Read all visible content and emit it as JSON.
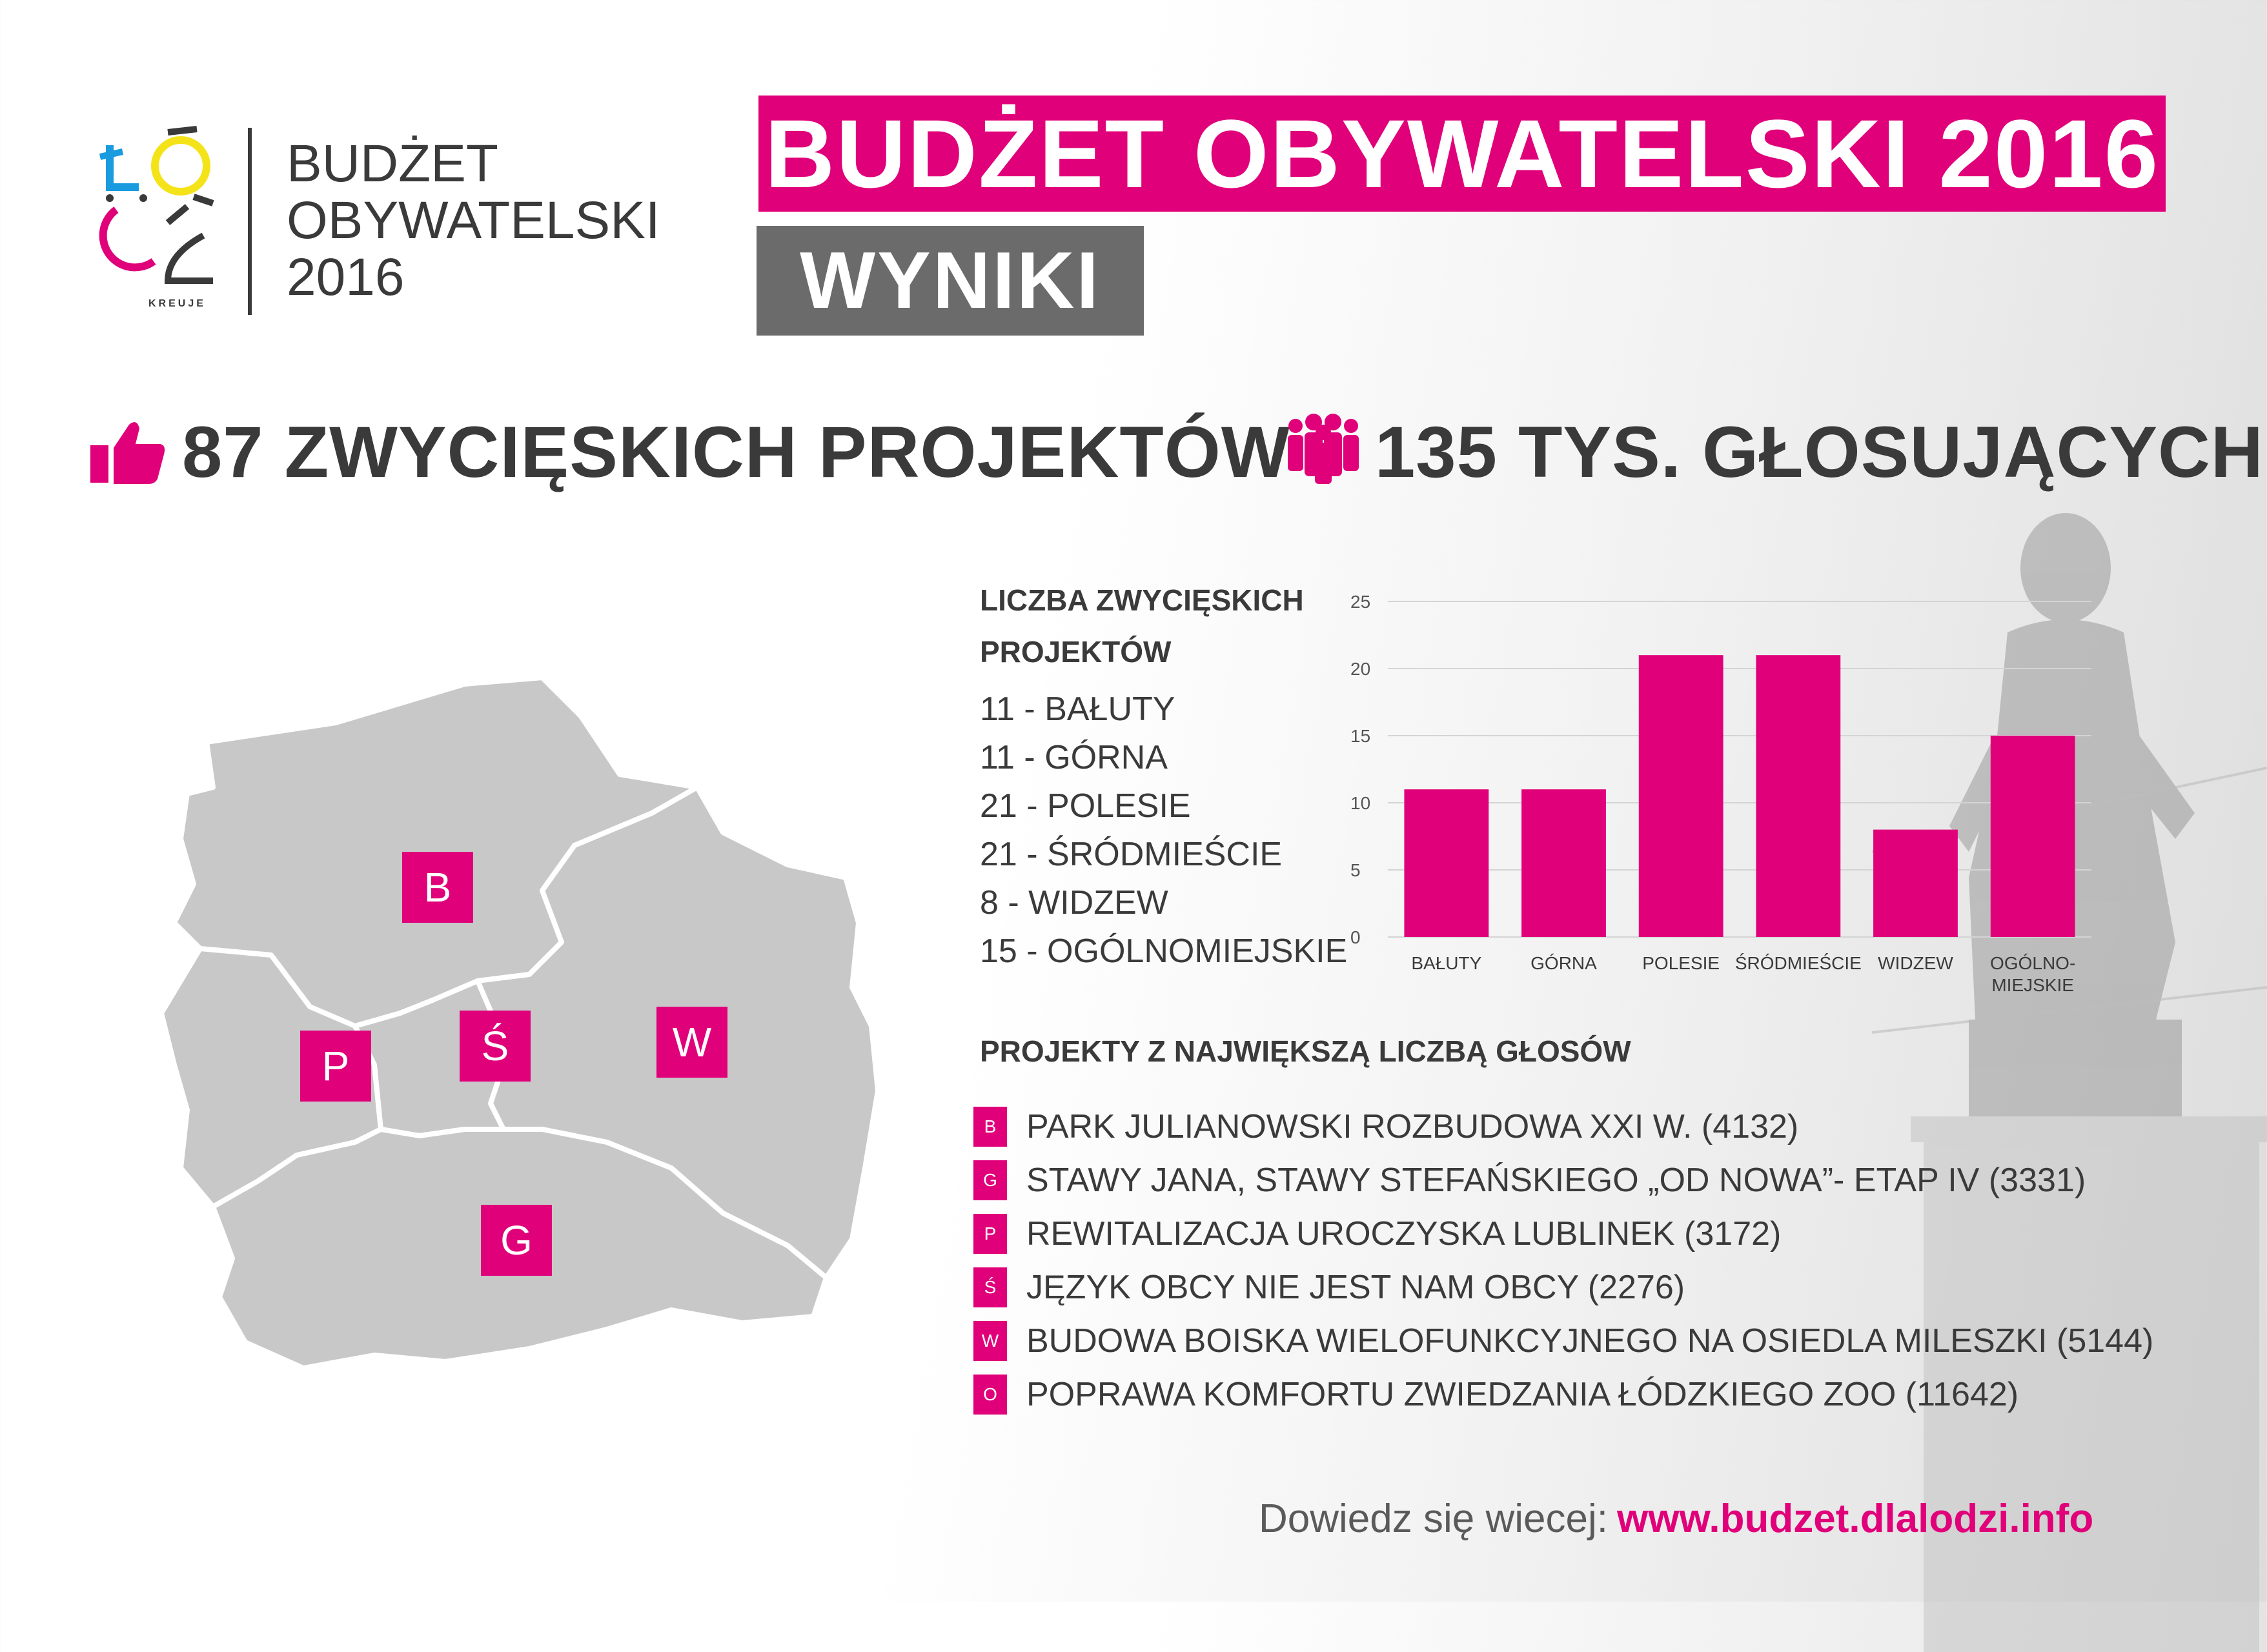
{
  "logo": {
    "line1": "BUDŻET",
    "line2": "OBYWATELSKI",
    "line3": "2016",
    "mark_caption": "KREUJE"
  },
  "banner": {
    "title": "BUDŻET OBYWATELSKI 2016",
    "subtitle": "WYNIKI"
  },
  "stats": {
    "projects": "87 ZWYCIĘSKICH PROJEKTÓW",
    "voters": "135 TYS. GŁOSUJĄCYCH"
  },
  "map": {
    "districts": [
      "B",
      "P",
      "Ś",
      "W",
      "G"
    ]
  },
  "counts": {
    "title_line1": "LICZBA ZWYCIĘSKICH",
    "title_line2": "PROJEKTÓW",
    "items": [
      "11 - BAŁUTY",
      "11 - GÓRNA",
      "21 - POLESIE",
      "21 - ŚRÓDMIEŚCIE",
      "8 - WIDZEW",
      "15 - OGÓLNOMIEJSKIE"
    ]
  },
  "chart_data": {
    "type": "bar",
    "categories": [
      "BAŁUTY",
      "GÓRNA",
      "POLESIE",
      "ŚRÓDMIEŚCIE",
      "WIDZEW",
      "OGÓLNO-\nMIEJSKIE"
    ],
    "values": [
      11,
      11,
      21,
      21,
      8,
      15
    ],
    "yticks": [
      0,
      5,
      10,
      15,
      20,
      25
    ],
    "ylim": [
      0,
      25
    ],
    "grid": true,
    "bar_color": "#e0007a",
    "title": "",
    "xlabel": "",
    "ylabel": ""
  },
  "projects": {
    "title": "PROJEKTY Z NAJWIĘKSZĄ LICZBĄ GŁOSÓW",
    "items": [
      {
        "badge": "B",
        "text": "PARK JULIANOWSKI ROZBUDOWA XXI W. (4132)"
      },
      {
        "badge": "G",
        "text": "STAWY JANA, STAWY STEFAŃSKIEGO „OD NOWA”- ETAP IV (3331)"
      },
      {
        "badge": "P",
        "text": "REWITALIZACJA UROCZYSKA LUBLINEK (3172)"
      },
      {
        "badge": "Ś",
        "text": "JĘZYK OBCY NIE JEST NAM OBCY (2276)"
      },
      {
        "badge": "W",
        "text": "BUDOWA BOISKA WIELOFUNKCYJNEGO NA OSIEDLA MILESZKI (5144)"
      },
      {
        "badge": "O",
        "text": "POPRAWA KOMFORTU ZWIEDZANIA ŁÓDZKIEGO ZOO (11642)"
      }
    ]
  },
  "footer": {
    "label": "Dowiedz się wiecej:",
    "url": "www.budzet.dlalodzi.info"
  },
  "colors": {
    "accent": "#e0007a",
    "dark_banner": "#6b6b6b",
    "map_fill": "#c8c8c8",
    "text": "#3a3a3a"
  },
  "icons": [
    "thumbs-up-icon",
    "people-icon",
    "logo-mark-icon"
  ]
}
